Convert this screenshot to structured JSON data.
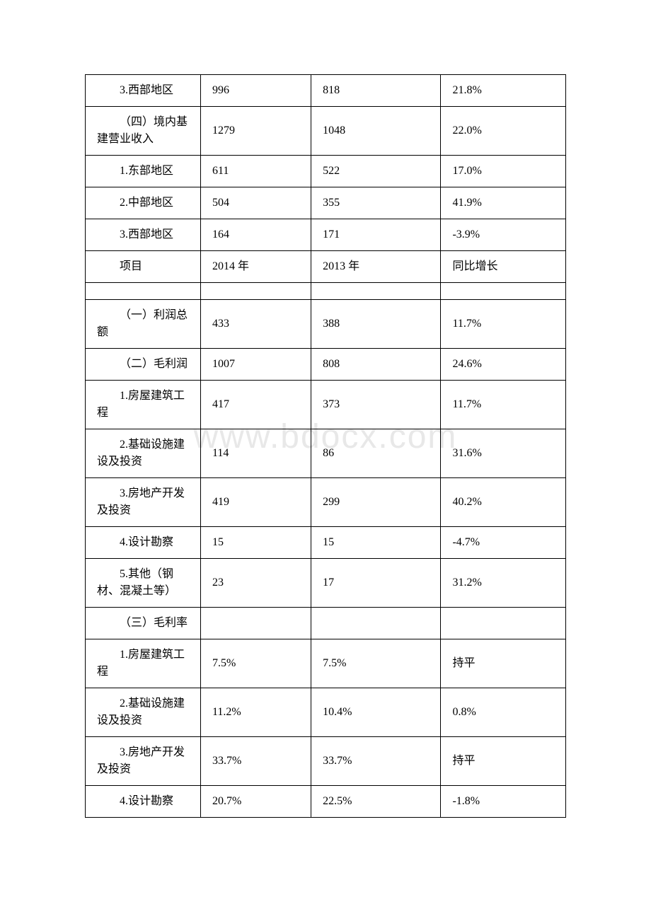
{
  "watermark": "www.bdocx.com",
  "table": {
    "columns_width": [
      "24%",
      "23%",
      "27%",
      "26%"
    ],
    "border_color": "#000000",
    "text_color": "#000000",
    "font_size": 16,
    "rows": [
      {
        "cells": [
          "3.西部地区",
          "996",
          "818",
          "21.8%"
        ],
        "indent_class": "indent1"
      },
      {
        "cells": [
          "（四）境内基建营业收入",
          "1279",
          "1048",
          "22.0%"
        ],
        "indent_class": "indent-wrap"
      },
      {
        "cells": [
          "1.东部地区",
          "611",
          "522",
          "17.0%"
        ],
        "indent_class": "indent1"
      },
      {
        "cells": [
          "2.中部地区",
          "504",
          "355",
          "41.9%"
        ],
        "indent_class": "indent1"
      },
      {
        "cells": [
          "3.西部地区",
          "164",
          "171",
          "-3.9%"
        ],
        "indent_class": "indent1"
      },
      {
        "cells": [
          "项目",
          "2014 年",
          "2013 年",
          "同比增长"
        ],
        "indent_class": "indent1"
      },
      {
        "cells": [
          "",
          "",
          "",
          ""
        ],
        "empty": true
      },
      {
        "cells": [
          "（一）利润总额",
          "433",
          "388",
          "11.7%"
        ],
        "indent_class": "indent-wrap"
      },
      {
        "cells": [
          "（二）毛利润",
          "1007",
          "808",
          "24.6%"
        ],
        "indent_class": "indent-wrap"
      },
      {
        "cells": [
          "1.房屋建筑工程",
          "417",
          "373",
          "11.7%"
        ],
        "indent_class": "indent-wrap"
      },
      {
        "cells": [
          "2.基础设施建设及投资",
          "114",
          "86",
          "31.6%"
        ],
        "indent_class": "indent-wrap"
      },
      {
        "cells": [
          "3.房地产开发及投资",
          "419",
          "299",
          "40.2%"
        ],
        "indent_class": "indent-wrap"
      },
      {
        "cells": [
          "4.设计勘察",
          "15",
          "15",
          "-4.7%"
        ],
        "indent_class": "indent1"
      },
      {
        "cells": [
          "5.其他（钢材、混凝土等）",
          "23",
          "17",
          "31.2%"
        ],
        "indent_class": "indent-wrap"
      },
      {
        "cells": [
          "（三）毛利率",
          "",
          "",
          ""
        ],
        "indent_class": "indent-wrap"
      },
      {
        "cells": [
          "1.房屋建筑工程",
          "7.5%",
          "7.5%",
          "持平"
        ],
        "indent_class": "indent-wrap"
      },
      {
        "cells": [
          "2.基础设施建设及投资",
          "11.2%",
          "10.4%",
          "0.8%"
        ],
        "indent_class": "indent-wrap"
      },
      {
        "cells": [
          "3.房地产开发及投资",
          "33.7%",
          "33.7%",
          "持平"
        ],
        "indent_class": "indent-wrap"
      },
      {
        "cells": [
          "4.设计勘察",
          "20.7%",
          "22.5%",
          "-1.8%"
        ],
        "indent_class": "indent1"
      }
    ]
  }
}
